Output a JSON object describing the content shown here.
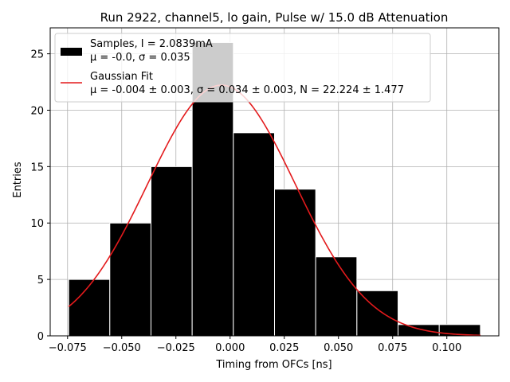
{
  "chart_data": {
    "type": "bar",
    "title": "Run 2922, channel5, lo gain, Pulse w/ 15.0 dB Attenuation",
    "xlabel": "Timing from OFCs [ns]",
    "ylabel": "Entries",
    "xlim": [
      -0.083,
      0.124
    ],
    "ylim": [
      0,
      27.3
    ],
    "grid": true,
    "legend_placement": "top-left",
    "x_ticks": [
      "−0.075",
      "−0.050",
      "−0.025",
      "0.000",
      "0.025",
      "0.050",
      "0.075",
      "0.100"
    ],
    "x_tick_values": [
      -0.075,
      -0.05,
      -0.025,
      0.0,
      0.025,
      0.05,
      0.075,
      0.1
    ],
    "y_ticks": [
      "0",
      "5",
      "10",
      "15",
      "20",
      "25"
    ],
    "y_tick_values": [
      0,
      5,
      10,
      15,
      20,
      25
    ],
    "histogram": {
      "name": "Samples",
      "legend_line1": "Samples, I = 2.0839mA",
      "legend_line2": "μ = -0.0, σ = 0.035",
      "color": "#000000",
      "edge_color": "#ffffff",
      "bin_edges": [
        -0.0745,
        -0.0555,
        -0.0365,
        -0.0175,
        0.0015,
        0.0205,
        0.0395,
        0.0585,
        0.0775,
        0.0965,
        0.1155
      ],
      "counts": [
        5,
        10,
        15,
        26,
        18,
        13,
        7,
        4,
        1,
        1
      ]
    },
    "fit": {
      "name": "Gaussian Fit",
      "legend_line1": "Gaussian Fit",
      "legend_line2": "μ = -0.004 ± 0.003, σ = 0.034 ± 0.003, N = 22.224 ± 1.477",
      "color": "#e31a1c",
      "mu": -0.004,
      "sigma": 0.034,
      "N": 22.224,
      "x_range": [
        -0.0745,
        0.1155
      ]
    }
  }
}
